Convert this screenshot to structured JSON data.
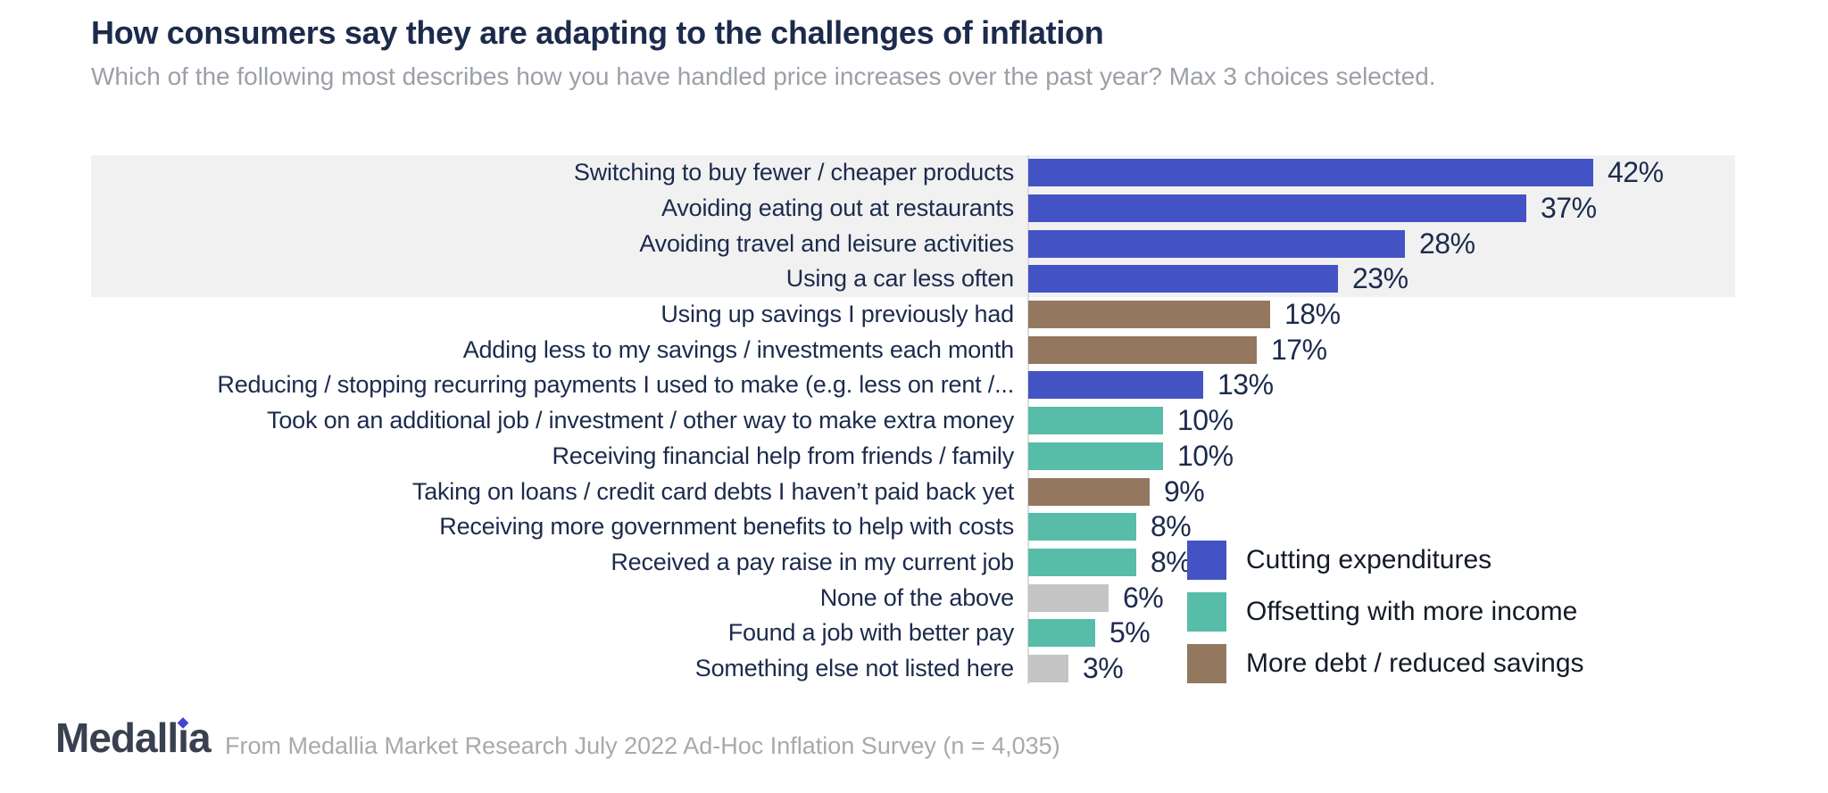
{
  "header": {
    "title": "How consumers say they are adapting to the challenges of inflation",
    "subtitle": "Which of the following most describes how you have handled price increases over the past year? Max 3 choices selected."
  },
  "chart_data": {
    "type": "bar",
    "orientation": "horizontal",
    "value_unit": "%",
    "xlim": [
      0,
      42
    ],
    "grid": false,
    "legend_position": "bottom-right",
    "categories": [
      "Switching to buy fewer / cheaper products",
      "Avoiding eating out at restaurants",
      "Avoiding travel and leisure activities",
      "Using a car less often",
      "Using up savings I previously had",
      "Adding less to my savings / investments each month",
      "Reducing / stopping recurring payments I used to make (e.g. less on rent /...",
      "Took on an additional job / investment / other way to make extra money",
      "Receiving financial help from friends / family",
      "Taking on loans / credit card debts I haven’t paid back yet",
      "Receiving more government benefits to help with costs",
      "Received a pay raise in my current job",
      "None of the above",
      "Found a job with better pay",
      "Something else not listed here"
    ],
    "values": [
      42,
      37,
      28,
      23,
      18,
      17,
      13,
      10,
      10,
      9,
      8,
      8,
      6,
      5,
      3
    ],
    "series_group": [
      "cutting",
      "cutting",
      "cutting",
      "cutting",
      "debt",
      "debt",
      "cutting",
      "income",
      "income",
      "debt",
      "income",
      "income",
      "none",
      "income",
      "none"
    ],
    "highlighted_row_indexes": [
      0,
      1,
      2,
      3
    ],
    "legend": [
      {
        "key": "cutting",
        "label": "Cutting expenditures",
        "color": "#4453C4"
      },
      {
        "key": "income",
        "label": "Offsetting with more income",
        "color": "#57BCA8"
      },
      {
        "key": "debt",
        "label": "More debt / reduced savings",
        "color": "#93785F"
      }
    ],
    "other_colors": {
      "none": "#C4C4C4"
    }
  },
  "footer": {
    "logo_text": "Medallia",
    "source_note": "From Medallia Market Research July 2022 Ad-Hoc Inflation Survey (n = 4,035)"
  },
  "colors": {
    "title_text": "#1C2B4C",
    "subtitle_text": "#9BA0A8",
    "label_text": "#1C2B4C",
    "value_text": "#1C2B4C",
    "legend_text": "#141B27",
    "highlight_band": "#F1F1F2",
    "axis_line": "#DCDCDE",
    "footnote_text": "#A9A9A9",
    "logo_text_color": "#39404F",
    "logo_dot_color": "#4145D1"
  }
}
